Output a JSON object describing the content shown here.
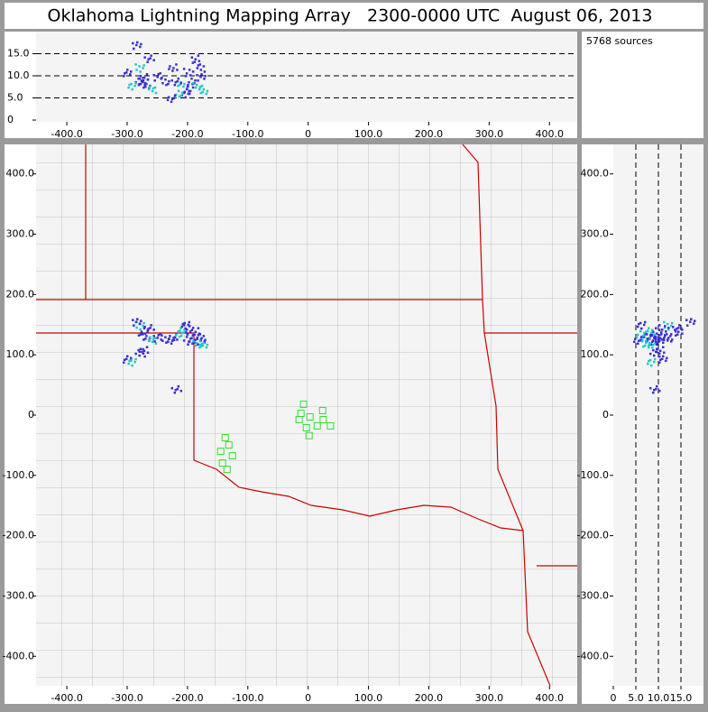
{
  "title": "Oklahoma Lightning Mapping Array   2300-0000 UTC  August 06, 2013",
  "source_count": "5768 sources",
  "plan": {
    "xlim": [
      -451,
      446
    ],
    "ylim": [
      -449,
      449
    ],
    "xticks": [
      {
        "value": -400,
        "label": "-400.0"
      },
      {
        "value": -300,
        "label": "-300.0"
      },
      {
        "value": -200,
        "label": "-200.0"
      },
      {
        "value": -100,
        "label": "-100.0"
      },
      0,
      {
        "value": 100,
        "label": "100.0"
      },
      {
        "value": 200,
        "label": "200.0"
      },
      {
        "value": 300,
        "label": "300.0"
      },
      {
        "value": 400,
        "label": "400.0"
      }
    ],
    "yticks": [
      {
        "value": 400,
        "label": "400.0"
      },
      {
        "value": 300,
        "label": "300.0"
      },
      {
        "value": 200,
        "label": "200.0"
      },
      {
        "value": 100,
        "label": "100.0"
      },
      0,
      {
        "value": -100,
        "label": "-100.0"
      },
      {
        "value": -200,
        "label": "-200.0"
      },
      {
        "value": -300,
        "label": "-300.0"
      },
      {
        "value": -400,
        "label": "-400.0"
      }
    ]
  },
  "altitude": {
    "lim": [
      -0.4,
      20
    ],
    "ticks": [
      0,
      {
        "value": 5,
        "label": "5.0"
      },
      {
        "value": 10,
        "label": "10.0"
      },
      {
        "value": 15,
        "label": "15.0"
      }
    ]
  },
  "side_altitude": {
    "lim": [
      0,
      20
    ],
    "ticks": [
      0,
      {
        "value": 5,
        "label": "5.0"
      },
      {
        "value": 10,
        "label": "10.0"
      },
      {
        "value": 15,
        "label": "15.0"
      }
    ]
  },
  "sources": {
    "color": "#3a2fd0",
    "highlight": "#22c8c8",
    "x": [
      -280,
      -275,
      -270,
      -265,
      -260,
      -280,
      -275,
      -300,
      -295,
      -250,
      -240,
      -225,
      -210,
      -205,
      -200,
      -195,
      -185,
      -180,
      -178,
      -190,
      -215,
      -230,
      -285,
      -200,
      -175,
      -220
    ],
    "y": [
      150,
      140,
      130,
      145,
      125,
      105,
      110,
      95,
      90,
      130,
      128,
      130,
      140,
      150,
      130,
      125,
      120,
      125,
      130,
      140,
      135,
      125,
      155,
      145,
      120,
      45
    ],
    "alt": [
      12,
      9,
      8,
      14,
      7,
      9,
      10,
      11,
      8,
      10,
      9,
      12,
      8,
      6,
      7,
      9,
      8,
      10,
      12,
      14,
      6,
      5,
      17,
      11,
      7,
      9
    ]
  },
  "stations": {
    "color": "#33dd33",
    "x": [
      -7.5,
      -12,
      3,
      -15,
      24,
      15,
      25,
      37,
      -3,
      1.5,
      -137.5,
      -131.5,
      -145,
      -125.5,
      -142,
      -134.5
    ],
    "y": [
      18,
      3,
      -3,
      -7.5,
      7.5,
      -18,
      -7.5,
      -18,
      -21,
      -34,
      -37.5,
      -49.5,
      -60,
      -67.5,
      -79.5,
      -90
    ]
  }
}
